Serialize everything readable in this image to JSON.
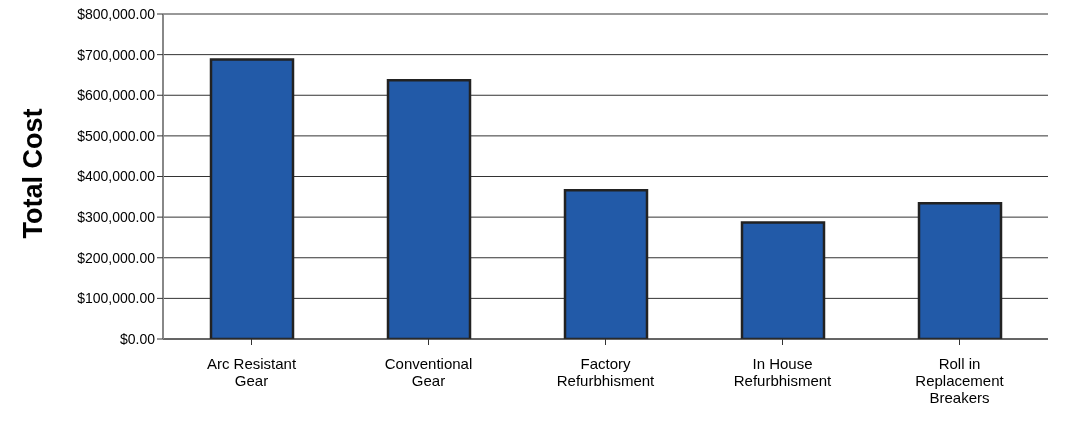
{
  "chart_data": {
    "type": "bar",
    "ylabel": "Total Cost",
    "categories": [
      "Arc Resistant Gear",
      "Conventional Gear",
      "Factory Refurbhisment",
      "In House Refurbhisment",
      "Roll in Replacement Breakers"
    ],
    "values": [
      688000,
      637000,
      366000,
      287000,
      334000
    ],
    "color": "#225aa8",
    "ylim": [
      0,
      800000
    ],
    "yticks": [
      {
        "value": 0,
        "label": "$0.00"
      },
      {
        "value": 100000,
        "label": "$100,000.00"
      },
      {
        "value": 200000,
        "label": "$200,000.00"
      },
      {
        "value": 300000,
        "label": "$300,000.00"
      },
      {
        "value": 400000,
        "label": "$400,000.00"
      },
      {
        "value": 500000,
        "label": "$500,000.00"
      },
      {
        "value": 600000,
        "label": "$600,000.00"
      },
      {
        "value": 700000,
        "label": "$700,000.00"
      },
      {
        "value": 800000,
        "label": "$800,000.00"
      }
    ],
    "grid": "y"
  }
}
